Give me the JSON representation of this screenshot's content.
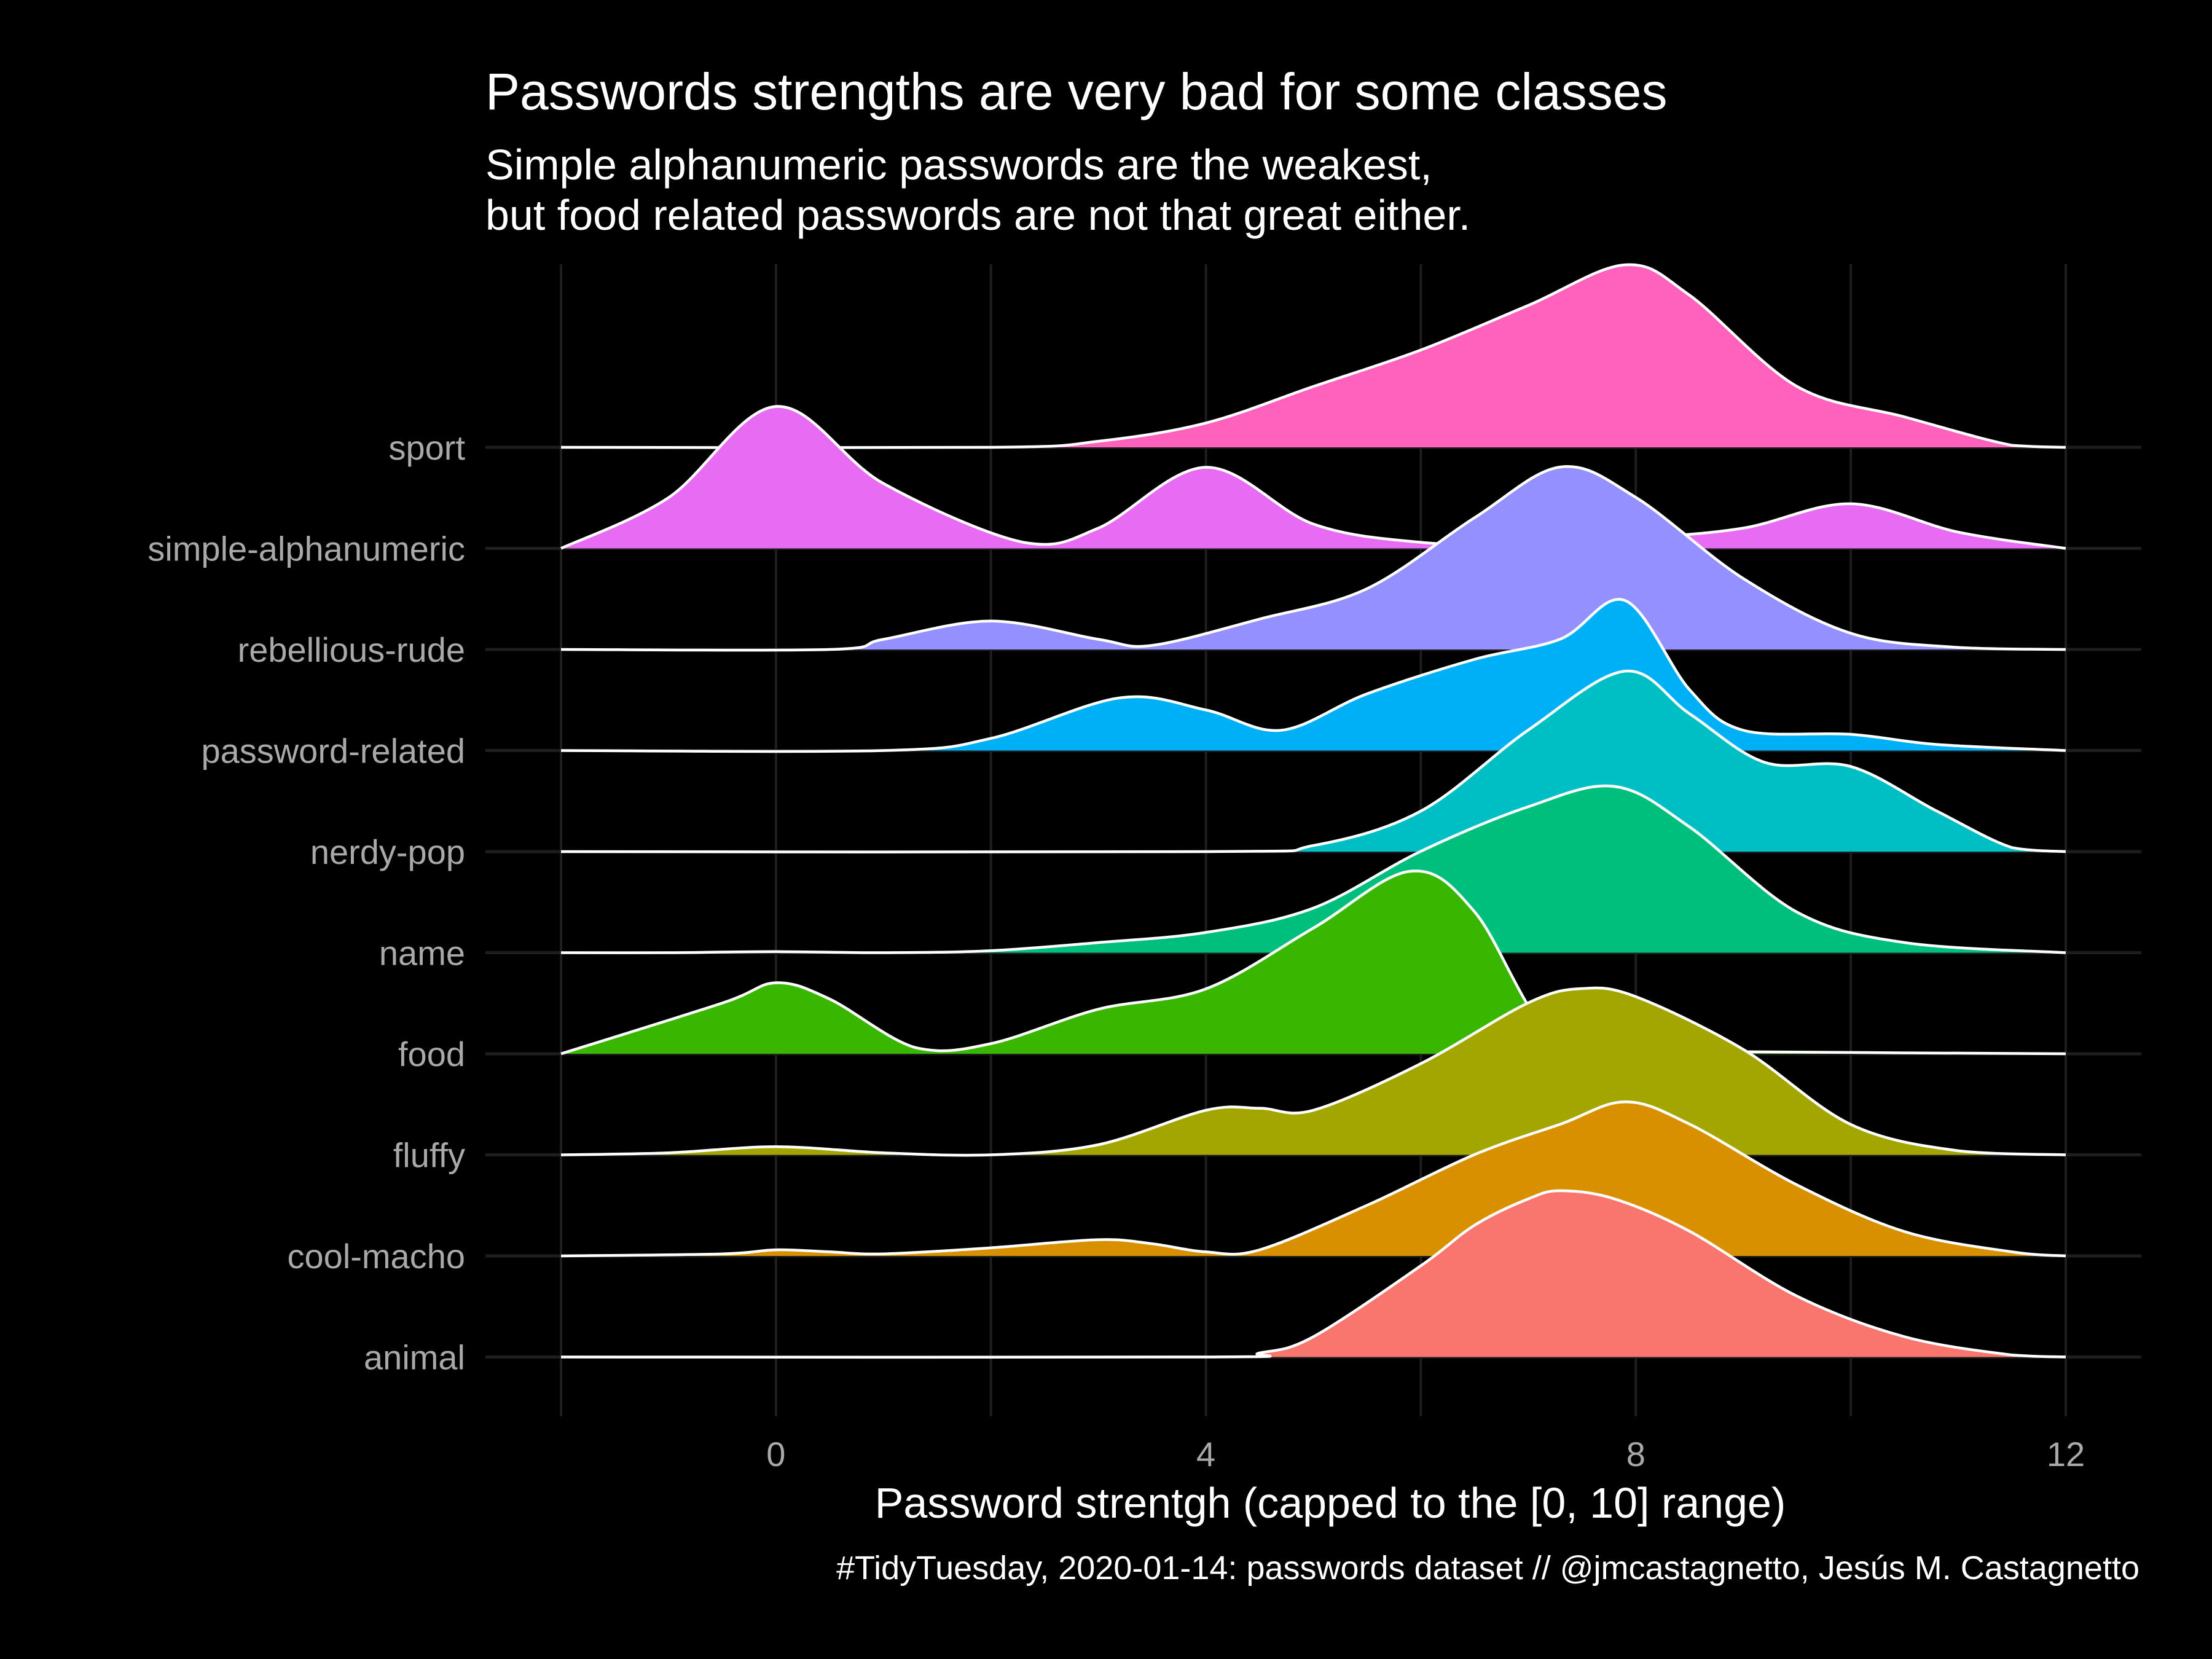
{
  "chart_data": {
    "type": "area",
    "subtype": "ridgeline",
    "title": "Passwords strengths are very bad for some classes",
    "subtitle": [
      "Simple alphanumeric passwords are the weakest,",
      "but food related passwords are not that great either."
    ],
    "xlabel": "Password strentgh (capped to the [0, 10] range)",
    "ylabel": "",
    "caption": "#TidyTuesday, 2020-01-14: passwords dataset // @jmcastagnetto, Jesús M. Castagnetto",
    "xlim": [
      -2,
      12
    ],
    "x_ticks": [
      0,
      4,
      8,
      12
    ],
    "grid": true,
    "legend": "none",
    "background": "#000000",
    "outline_color": "#ffffff",
    "series": [
      {
        "name": "animal",
        "color": "#F8766D",
        "points": [
          [
            -2,
            0
          ],
          [
            4,
            0
          ],
          [
            4.5,
            0.02
          ],
          [
            5,
            0.1
          ],
          [
            6,
            0.45
          ],
          [
            6.5,
            0.65
          ],
          [
            7,
            0.78
          ],
          [
            7.3,
            0.82
          ],
          [
            7.8,
            0.78
          ],
          [
            8.5,
            0.62
          ],
          [
            9.5,
            0.3
          ],
          [
            10.5,
            0.1
          ],
          [
            11.5,
            0.01
          ],
          [
            12,
            0
          ]
        ]
      },
      {
        "name": "cool-macho",
        "color": "#D89000",
        "points": [
          [
            -2,
            0
          ],
          [
            -0.5,
            0.01
          ],
          [
            0,
            0.03
          ],
          [
            0.5,
            0.02
          ],
          [
            1,
            0.01
          ],
          [
            2,
            0.04
          ],
          [
            3,
            0.08
          ],
          [
            3.5,
            0.06
          ],
          [
            4,
            0.02
          ],
          [
            4.5,
            0.03
          ],
          [
            5.5,
            0.25
          ],
          [
            6.5,
            0.5
          ],
          [
            7.3,
            0.65
          ],
          [
            7.9,
            0.76
          ],
          [
            8.5,
            0.65
          ],
          [
            9.5,
            0.35
          ],
          [
            10.5,
            0.12
          ],
          [
            11.5,
            0.02
          ],
          [
            12,
            0
          ]
        ]
      },
      {
        "name": "fluffy",
        "color": "#A3A500",
        "points": [
          [
            -2,
            0
          ],
          [
            -1,
            0.01
          ],
          [
            0,
            0.04
          ],
          [
            1,
            0.01
          ],
          [
            2,
            0.0
          ],
          [
            3,
            0.05
          ],
          [
            4,
            0.22
          ],
          [
            4.5,
            0.23
          ],
          [
            5,
            0.22
          ],
          [
            6,
            0.45
          ],
          [
            7,
            0.75
          ],
          [
            7.5,
            0.82
          ],
          [
            8,
            0.78
          ],
          [
            9,
            0.52
          ],
          [
            10,
            0.15
          ],
          [
            11,
            0.02
          ],
          [
            12,
            0
          ]
        ]
      },
      {
        "name": "food",
        "color": "#39B600",
        "points": [
          [
            -2,
            0
          ],
          [
            -0.5,
            0.25
          ],
          [
            0,
            0.35
          ],
          [
            0.5,
            0.27
          ],
          [
            1.3,
            0.03
          ],
          [
            2,
            0.05
          ],
          [
            3,
            0.22
          ],
          [
            4,
            0.32
          ],
          [
            5,
            0.62
          ],
          [
            5.9,
            0.9
          ],
          [
            6.5,
            0.7
          ],
          [
            7.2,
            0.1
          ],
          [
            8,
            0.02
          ],
          [
            9,
            0.01
          ],
          [
            12,
            0
          ]
        ]
      },
      {
        "name": "name",
        "color": "#00BF7D",
        "points": [
          [
            -2,
            0
          ],
          [
            -1,
            0.0
          ],
          [
            0,
            0.005
          ],
          [
            1,
            0.0
          ],
          [
            2,
            0.01
          ],
          [
            3,
            0.05
          ],
          [
            4,
            0.1
          ],
          [
            5,
            0.22
          ],
          [
            6,
            0.5
          ],
          [
            7,
            0.72
          ],
          [
            7.8,
            0.82
          ],
          [
            8.5,
            0.62
          ],
          [
            9.5,
            0.2
          ],
          [
            10.5,
            0.05
          ],
          [
            12,
            0
          ]
        ]
      },
      {
        "name": "nerdy-pop",
        "color": "#00BFC4",
        "points": [
          [
            -2,
            0
          ],
          [
            4,
            0
          ],
          [
            5,
            0.03
          ],
          [
            6,
            0.2
          ],
          [
            7,
            0.6
          ],
          [
            7.9,
            0.89
          ],
          [
            8.5,
            0.68
          ],
          [
            9.2,
            0.44
          ],
          [
            10,
            0.42
          ],
          [
            10.8,
            0.2
          ],
          [
            11.5,
            0.02
          ],
          [
            12,
            0
          ]
        ]
      },
      {
        "name": "password-related",
        "color": "#00B0F6",
        "points": [
          [
            -2,
            0
          ],
          [
            1,
            0
          ],
          [
            2,
            0.06
          ],
          [
            3.2,
            0.26
          ],
          [
            4,
            0.2
          ],
          [
            4.7,
            0.1
          ],
          [
            5.5,
            0.28
          ],
          [
            6.5,
            0.45
          ],
          [
            7.3,
            0.55
          ],
          [
            7.9,
            0.74
          ],
          [
            8.5,
            0.3
          ],
          [
            9,
            0.1
          ],
          [
            10,
            0.08
          ],
          [
            10.8,
            0.03
          ],
          [
            12,
            0
          ]
        ]
      },
      {
        "name": "rebellious-rude",
        "color": "#9590FF",
        "points": [
          [
            -2,
            0
          ],
          [
            0.5,
            0.0
          ],
          [
            1,
            0.05
          ],
          [
            2,
            0.14
          ],
          [
            3,
            0.05
          ],
          [
            3.5,
            0.02
          ],
          [
            4.5,
            0.15
          ],
          [
            5.5,
            0.3
          ],
          [
            6.5,
            0.65
          ],
          [
            7.3,
            0.9
          ],
          [
            8,
            0.75
          ],
          [
            9,
            0.35
          ],
          [
            10,
            0.08
          ],
          [
            11,
            0.01
          ],
          [
            12,
            0
          ]
        ]
      },
      {
        "name": "simple-alphanumeric",
        "color": "#E76BF3",
        "points": [
          [
            -2,
            0
          ],
          [
            -1,
            0.25
          ],
          [
            0,
            0.7
          ],
          [
            1,
            0.32
          ],
          [
            2.3,
            0.03
          ],
          [
            3,
            0.1
          ],
          [
            4,
            0.4
          ],
          [
            5,
            0.12
          ],
          [
            6,
            0.03
          ],
          [
            7,
            0.02
          ],
          [
            8,
            0.05
          ],
          [
            9,
            0.1
          ],
          [
            10,
            0.22
          ],
          [
            11,
            0.08
          ],
          [
            12,
            0
          ]
        ]
      },
      {
        "name": "sport",
        "color": "#FF62BC",
        "points": [
          [
            -2,
            0
          ],
          [
            2,
            0
          ],
          [
            3,
            0.03
          ],
          [
            4,
            0.12
          ],
          [
            5,
            0.3
          ],
          [
            6,
            0.48
          ],
          [
            7,
            0.7
          ],
          [
            7.9,
            0.9
          ],
          [
            8.5,
            0.75
          ],
          [
            9.5,
            0.3
          ],
          [
            10.5,
            0.15
          ],
          [
            11.5,
            0.01
          ],
          [
            12,
            0
          ]
        ]
      }
    ]
  }
}
